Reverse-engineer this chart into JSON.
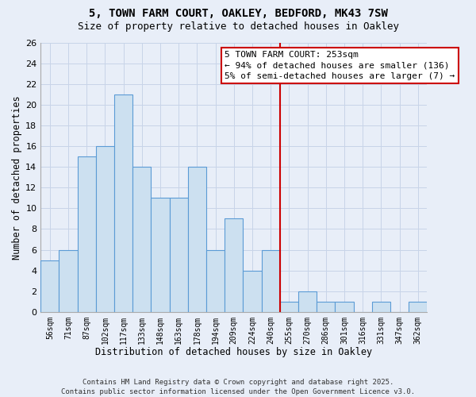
{
  "title_line1": "5, TOWN FARM COURT, OAKLEY, BEDFORD, MK43 7SW",
  "title_line2": "Size of property relative to detached houses in Oakley",
  "bin_labels": [
    "56sqm",
    "71sqm",
    "87sqm",
    "102sqm",
    "117sqm",
    "133sqm",
    "148sqm",
    "163sqm",
    "178sqm",
    "194sqm",
    "209sqm",
    "224sqm",
    "240sqm",
    "255sqm",
    "270sqm",
    "286sqm",
    "301sqm",
    "316sqm",
    "331sqm",
    "347sqm",
    "362sqm"
  ],
  "bar_values": [
    5,
    6,
    15,
    16,
    21,
    14,
    11,
    11,
    14,
    6,
    9,
    4,
    6,
    1,
    2,
    1,
    1,
    0,
    1,
    0,
    1
  ],
  "bar_color": "#cce0f0",
  "bar_edge_color": "#5b9bd5",
  "bar_linewidth": 0.8,
  "vline_x_index": 13,
  "vline_color": "#cc0000",
  "xlabel": "Distribution of detached houses by size in Oakley",
  "ylabel": "Number of detached properties",
  "ylim_max": 26,
  "yticks": [
    0,
    2,
    4,
    6,
    8,
    10,
    12,
    14,
    16,
    18,
    20,
    22,
    24,
    26
  ],
  "grid_color": "#c8d4e8",
  "background_color": "#e8eef8",
  "plot_bg_color": "#e8eef8",
  "annotation_line1": "5 TOWN FARM COURT: 253sqm",
  "annotation_line2": "← 94% of detached houses are smaller (136)",
  "annotation_line3": "5% of semi-detached houses are larger (7) →",
  "ann_box_color": "#cc0000",
  "footer_line1": "Contains HM Land Registry data © Crown copyright and database right 2025.",
  "footer_line2": "Contains public sector information licensed under the Open Government Licence v3.0.",
  "title_fontsize": 10,
  "subtitle_fontsize": 9,
  "xlabel_fontsize": 8.5,
  "ylabel_fontsize": 8.5,
  "xtick_fontsize": 7,
  "ytick_fontsize": 8,
  "ann_fontsize": 8,
  "footer_fontsize": 6.5
}
